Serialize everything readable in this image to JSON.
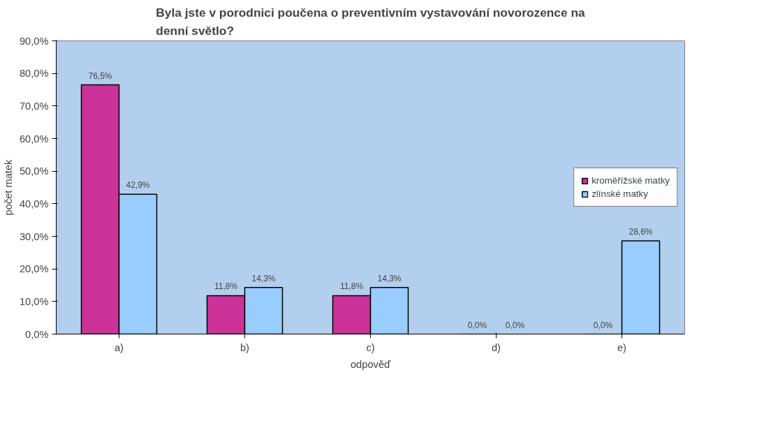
{
  "chart_data": {
    "type": "bar",
    "title": "Byla jste v porodnici poučena o preventivním vystavování novorozence na denní světlo?",
    "xlabel": "odpověď",
    "ylabel": "počet matek",
    "categories": [
      "a)",
      "b)",
      "c)",
      "d)",
      "e)"
    ],
    "series": [
      {
        "name": "kroměřížské matky",
        "color": "#cc3399",
        "values": [
          76.5,
          11.8,
          11.8,
          0.0,
          0.0
        ],
        "value_labels": [
          "76,5%",
          "11,8%",
          "11,8%",
          "0,0%",
          "0,0%"
        ]
      },
      {
        "name": "zlínské matky",
        "color": "#99ccff",
        "values": [
          42.9,
          14.3,
          14.3,
          0.0,
          28.6
        ],
        "value_labels": [
          "42,9%",
          "14,3%",
          "14,3%",
          "0,0%",
          "28,6%"
        ]
      }
    ],
    "ylim": [
      0,
      90
    ],
    "yticks": [
      {
        "value": 0,
        "label": "0,0%"
      },
      {
        "value": 10,
        "label": "10,0%"
      },
      {
        "value": 20,
        "label": "20,0%"
      },
      {
        "value": 30,
        "label": "30,0%"
      },
      {
        "value": 40,
        "label": "40,0%"
      },
      {
        "value": 50,
        "label": "50,0%"
      },
      {
        "value": 60,
        "label": "60,0%"
      },
      {
        "value": 70,
        "label": "70,0%"
      },
      {
        "value": 80,
        "label": "80,0%"
      },
      {
        "value": 90,
        "label": "90,0%"
      }
    ],
    "grid": false,
    "legend": "right"
  }
}
